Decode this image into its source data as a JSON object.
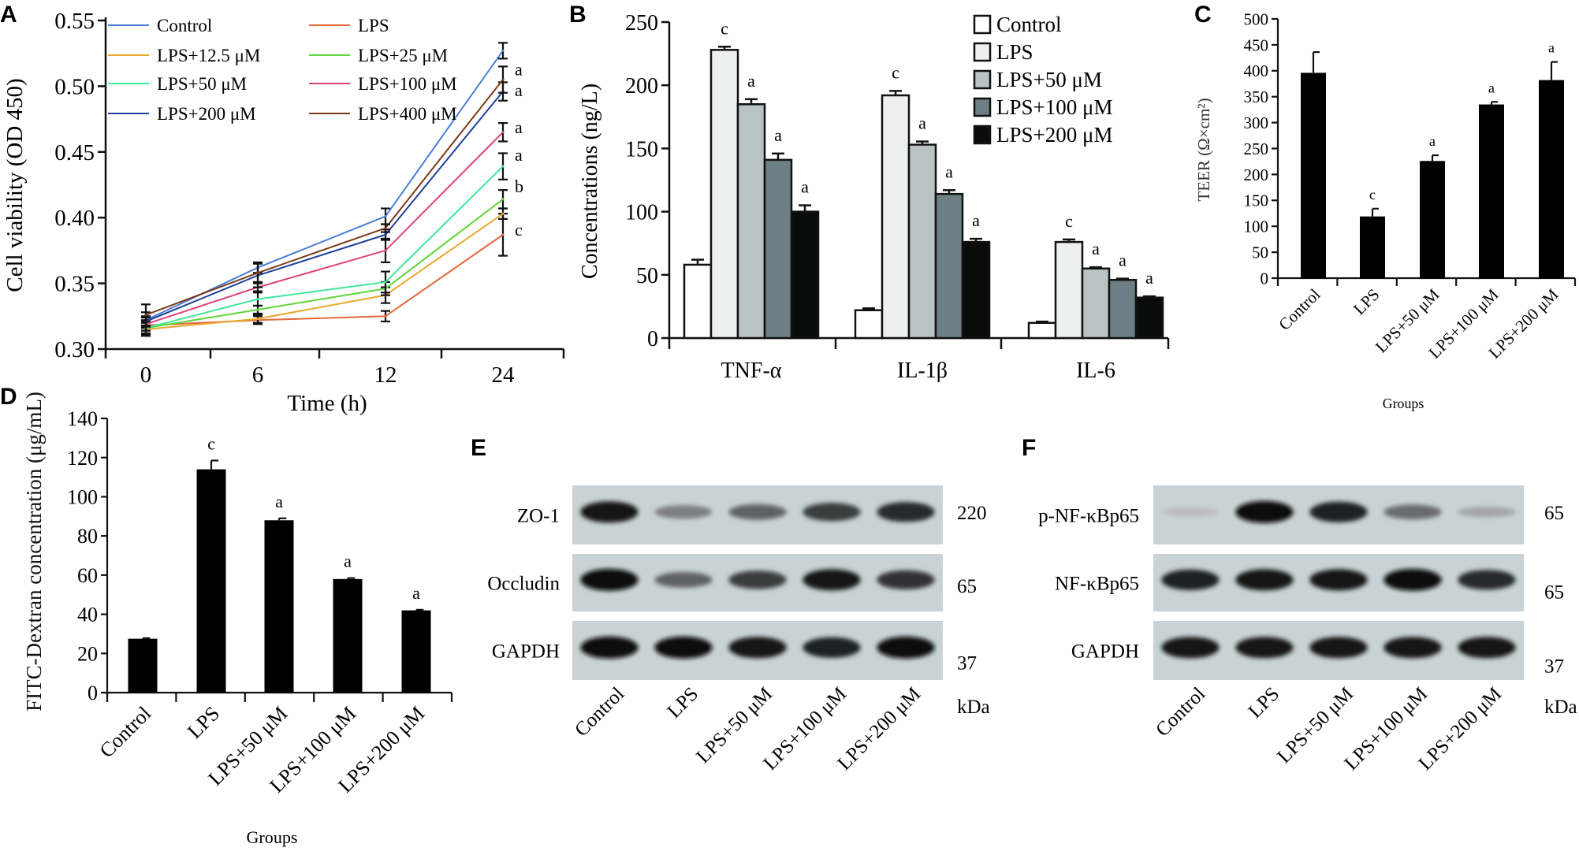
{
  "figure": {
    "panels": [
      "A",
      "B",
      "C",
      "D",
      "E",
      "F"
    ]
  },
  "chart_data": [
    {
      "panel": "A",
      "type": "line",
      "xlabel": "Time (h)",
      "ylabel": "Cell viability (OD 450)",
      "x": [
        0,
        6,
        12,
        24
      ],
      "x_tick_labels": [
        "0",
        "6",
        "12",
        "24"
      ],
      "ylim": [
        0.3,
        0.55
      ],
      "y_ticks": [
        "0.30",
        "0.35",
        "0.40",
        "0.45",
        "0.50",
        "0.55"
      ],
      "legend_position": "top-left",
      "series": [
        {
          "name": "Control",
          "color": "#4a7fd6",
          "values": [
            0.322,
            0.362,
            0.401,
            0.527
          ],
          "err": [
            0.006,
            0.004,
            0.006,
            0.006
          ]
        },
        {
          "name": "LPS",
          "color": "#e2683a",
          "values": [
            0.318,
            0.322,
            0.325,
            0.387
          ],
          "err": [
            0.004,
            0.003,
            0.004,
            0.016
          ]
        },
        {
          "name": "LPS+12.5 μM",
          "color": "#e8a82a",
          "values": [
            0.315,
            0.323,
            0.341,
            0.403
          ],
          "err": [
            0.005,
            0.003,
            0.006,
            0.004
          ]
        },
        {
          "name": "LPS+25 μM",
          "color": "#5fd63a",
          "values": [
            0.316,
            0.33,
            0.346,
            0.414
          ],
          "err": [
            0.004,
            0.003,
            0.005,
            0.007
          ]
        },
        {
          "name": "LPS+50 μM",
          "color": "#3ee89a",
          "values": [
            0.316,
            0.338,
            0.351,
            0.439
          ],
          "err": [
            0.005,
            0.005,
            0.008,
            0.01
          ]
        },
        {
          "name": "LPS+100 μM",
          "color": "#e0407a",
          "values": [
            0.319,
            0.347,
            0.375,
            0.465
          ],
          "err": [
            0.005,
            0.003,
            0.009,
            0.007
          ]
        },
        {
          "name": "LPS+200 μM",
          "color": "#1f3f9a",
          "values": [
            0.321,
            0.356,
            0.387,
            0.496
          ],
          "err": [
            0.004,
            0.009,
            0.004,
            0.007
          ]
        },
        {
          "name": "LPS+400 μM",
          "color": "#7a3a18",
          "values": [
            0.326,
            0.358,
            0.392,
            0.505
          ],
          "err": [
            0.008,
            0.007,
            0.003,
            0.01
          ]
        }
      ],
      "annotations": [
        {
          "x": 24,
          "y": 0.512,
          "text": "a"
        },
        {
          "x": 24,
          "y": 0.496,
          "text": "a"
        },
        {
          "x": 24,
          "y": 0.468,
          "text": "a"
        },
        {
          "x": 24,
          "y": 0.447,
          "text": "a"
        },
        {
          "x": 24,
          "y": 0.423,
          "text": "b"
        },
        {
          "x": 24,
          "y": 0.39,
          "text": "c"
        }
      ]
    },
    {
      "panel": "B",
      "type": "bar",
      "ylabel": "Concentrations (ng/L)",
      "xlabel": "",
      "categories": [
        "TNF-α",
        "IL-1β",
        "IL-6"
      ],
      "ylim": [
        0,
        250
      ],
      "y_ticks": [
        "0",
        "50",
        "100",
        "150",
        "200",
        "250"
      ],
      "legend_position": "top-right",
      "series": [
        {
          "name": "Control",
          "color": "#ffffff",
          "values": [
            58,
            22,
            12
          ],
          "err": [
            4,
            1.5,
            1
          ],
          "labels": [
            "",
            "",
            ""
          ]
        },
        {
          "name": "LPS",
          "color": "#eef0f0",
          "values": [
            228,
            192,
            76
          ],
          "err": [
            2.5,
            3.5,
            2
          ],
          "labels": [
            "c",
            "c",
            "c"
          ]
        },
        {
          "name": "LPS+50 μM",
          "color": "#b9c3c4",
          "values": [
            185,
            153,
            55
          ],
          "err": [
            4,
            2.5,
            1
          ],
          "labels": [
            "a",
            "a",
            "a"
          ]
        },
        {
          "name": "LPS+100 μM",
          "color": "#6d7f84",
          "values": [
            141,
            114,
            46
          ],
          "err": [
            5,
            3,
            1
          ],
          "labels": [
            "a",
            "a",
            "a"
          ]
        },
        {
          "name": "LPS+200 μM",
          "color": "#0a0c0c",
          "values": [
            100,
            76,
            32
          ],
          "err": [
            5,
            2.5,
            1
          ],
          "labels": [
            "a",
            "a",
            "a"
          ]
        }
      ]
    },
    {
      "panel": "C",
      "type": "bar",
      "ylabel": "TEER (Ω×cm²)",
      "xlabel": "Groups",
      "categories": [
        "Control",
        "LPS",
        "LPS+50 μM",
        "LPS+100 μM",
        "LPS+200 μM"
      ],
      "values": [
        396,
        119,
        226,
        335,
        382
      ],
      "err": [
        40,
        15,
        11,
        5,
        35
      ],
      "labels": [
        "",
        "c",
        "a",
        "a",
        "a"
      ],
      "ylim": [
        0,
        500
      ],
      "y_ticks": [
        "0",
        "50",
        "100",
        "150",
        "200",
        "250",
        "300",
        "350",
        "400",
        "450",
        "500"
      ]
    },
    {
      "panel": "D",
      "type": "bar",
      "ylabel": "FITC-Dextran concentration (μg/mL)",
      "xlabel": "Groups",
      "categories": [
        "Control",
        "LPS",
        "LPS+50 μM",
        "LPS+100 μM",
        "LPS+200 μM"
      ],
      "values": [
        27.5,
        114,
        88,
        58,
        42
      ],
      "err": [
        0.3,
        4.5,
        1,
        0.5,
        0.3
      ],
      "labels": [
        "",
        "c",
        "a",
        "a",
        "a"
      ],
      "ylim": [
        0,
        140
      ],
      "y_ticks": [
        "0",
        "20",
        "40",
        "60",
        "80",
        "100",
        "120",
        "140"
      ]
    }
  ],
  "blots": [
    {
      "panel": "E",
      "lanes": [
        "Control",
        "LPS",
        "LPS+50 μM",
        "LPS+100 μM",
        "LPS+200 μM"
      ],
      "unit": "kDa",
      "rows": [
        {
          "protein": "ZO-1",
          "kda": "220",
          "intensity": [
            0.95,
            0.4,
            0.55,
            0.75,
            0.85
          ]
        },
        {
          "protein": "Occludin",
          "kda": "65",
          "intensity": [
            1.0,
            0.55,
            0.75,
            0.95,
            0.8
          ]
        },
        {
          "protein": "GAPDH",
          "kda": "37",
          "intensity": [
            1.0,
            1.0,
            0.95,
            0.9,
            1.0
          ]
        }
      ]
    },
    {
      "panel": "F",
      "lanes": [
        "Control",
        "LPS",
        "LPS+50 μM",
        "LPS+100 μM",
        "LPS+200 μM"
      ],
      "unit": "kDa",
      "rows": [
        {
          "protein": "p-NF-κBp65",
          "kda": "65",
          "intensity": [
            0.08,
            1.0,
            0.9,
            0.5,
            0.2
          ]
        },
        {
          "protein": "NF-κBp65",
          "kda": "65",
          "intensity": [
            0.9,
            0.95,
            0.95,
            1.0,
            0.85
          ]
        },
        {
          "protein": "GAPDH",
          "kda": "37",
          "intensity": [
            0.95,
            0.95,
            0.95,
            0.95,
            0.95
          ]
        }
      ]
    }
  ]
}
